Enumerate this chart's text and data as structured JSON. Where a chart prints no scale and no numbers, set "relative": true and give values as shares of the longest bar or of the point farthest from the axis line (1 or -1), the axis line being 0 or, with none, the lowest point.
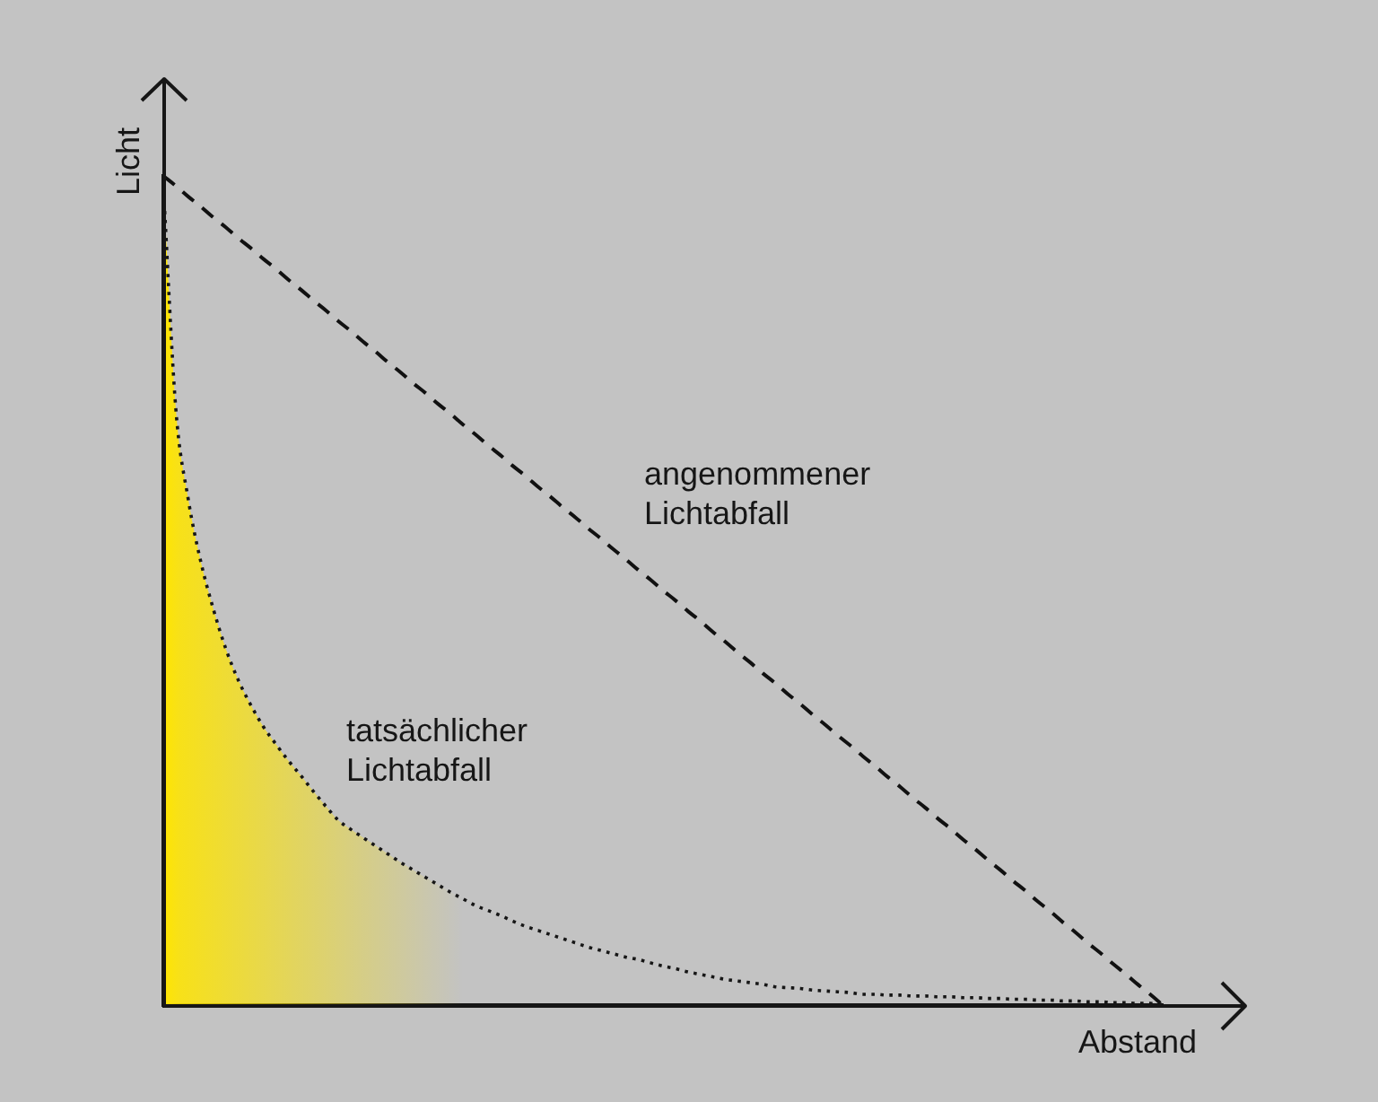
{
  "chart_data": {
    "type": "line",
    "relative": true,
    "xlabel": "Abstand",
    "ylabel": "Licht",
    "categories": [
      null,
      null,
      null,
      null,
      null,
      null,
      null,
      null,
      null,
      null,
      null,
      null,
      null,
      null,
      null,
      null,
      null,
      null,
      null,
      null,
      null,
      null,
      null,
      null,
      null,
      null,
      null,
      null,
      null,
      null,
      null,
      null,
      null,
      null,
      null,
      null,
      null,
      null,
      null,
      null,
      null,
      null,
      null,
      null,
      null,
      null,
      null,
      null,
      null,
      null,
      null,
      null,
      null,
      null,
      null,
      null,
      null,
      null,
      null,
      null,
      null,
      null,
      null,
      null,
      null,
      null,
      null,
      null,
      null,
      null,
      null,
      null,
      null,
      null,
      null,
      null,
      null,
      null,
      null,
      null,
      null
    ],
    "series": [
      {
        "name": "angenommener Lichtabfall",
        "type": "line",
        "line_style": "dashed",
        "color": "#111111",
        "values": [
          1,
          0.988,
          0.975,
          0.963,
          0.95,
          0.938,
          0.925,
          0.913,
          0.9,
          0.888,
          0.875,
          0.863,
          0.85,
          0.838,
          0.825,
          0.813,
          0.8,
          0.788,
          0.775,
          0.763,
          0.75,
          0.738,
          0.725,
          0.713,
          0.7,
          0.688,
          0.675,
          0.663,
          0.65,
          0.638,
          0.625,
          0.613,
          0.6,
          0.588,
          0.575,
          0.563,
          0.55,
          0.538,
          0.525,
          0.513,
          0.5,
          0.488,
          0.475,
          0.463,
          0.45,
          0.438,
          0.425,
          0.413,
          0.4,
          0.388,
          0.375,
          0.363,
          0.35,
          0.338,
          0.325,
          0.313,
          0.3,
          0.288,
          0.275,
          0.263,
          0.25,
          0.238,
          0.225,
          0.213,
          0.2,
          0.188,
          0.175,
          0.163,
          0.15,
          0.138,
          0.125,
          0.113,
          0.1,
          0.088,
          0.075,
          0.063,
          0.05,
          0.038,
          0.025,
          0.013,
          0
        ]
      },
      {
        "name": "tatsächlicher Lichtabfall",
        "type": "area",
        "line_style": "dotted",
        "color": "#ffe500",
        "values": [
          0.99,
          0.72,
          0.61,
          0.535,
          0.478,
          0.43,
          0.392,
          0.362,
          0.336,
          0.315,
          0.295,
          0.277,
          0.258,
          0.24,
          0.223,
          0.212,
          0.202,
          0.192,
          0.182,
          0.172,
          0.163,
          0.154,
          0.145,
          0.136,
          0.128,
          0.12,
          0.114,
          0.108,
          0.101,
          0.095,
          0.09,
          0.085,
          0.08,
          0.075,
          0.07,
          0.066,
          0.062,
          0.058,
          0.055,
          0.051,
          0.047,
          0.044,
          0.04,
          0.037,
          0.034,
          0.031,
          0.029,
          0.027,
          0.025,
          0.022,
          0.021,
          0.02,
          0.018,
          0.017,
          0.016,
          0.015,
          0.013,
          0.013,
          0.012,
          0.012,
          0.011,
          0.011,
          0.01,
          0.01,
          0.009,
          0.009,
          0.008,
          0.008,
          0.007,
          0.007,
          0.006,
          0.006,
          0.005,
          0.005,
          0.004,
          0.004,
          0.003,
          0.003,
          0.002,
          0.002,
          0.001
        ]
      }
    ]
  }
}
